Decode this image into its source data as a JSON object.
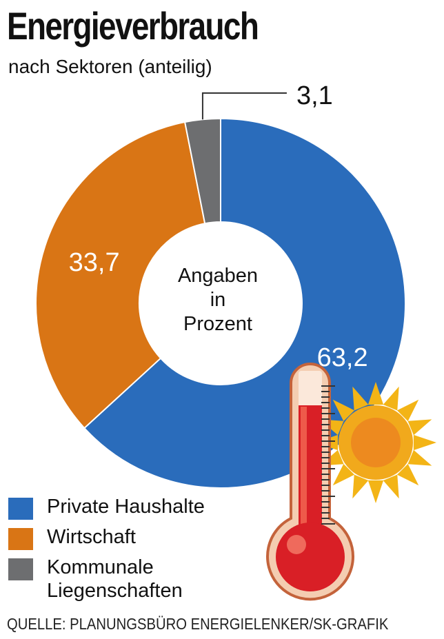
{
  "chart_data": {
    "type": "pie",
    "style": "donut",
    "title": "Energieverbrauch",
    "subtitle": "nach Sektoren (anteilig)",
    "center_label": [
      "Angaben",
      "in",
      "Prozent"
    ],
    "series": [
      {
        "name": "Private Haushalte",
        "value": 63.2,
        "label": "63,2",
        "color": "#2a6cbb"
      },
      {
        "name": "Wirtschaft",
        "value": 33.7,
        "label": "33,7",
        "color": "#d97515"
      },
      {
        "name": "Kommunale Liegenschaften",
        "value": 3.1,
        "label": "3,1",
        "color": "#6d6e70"
      }
    ],
    "legend": {
      "placement": "bottom-left",
      "items": [
        {
          "label": "Private Haushalte",
          "color": "#2a6cbb"
        },
        {
          "label": "Wirtschaft",
          "color": "#d97515"
        },
        {
          "label": "Kommunale Liegenschaften",
          "color": "#6d6e70"
        }
      ]
    },
    "source": "QUELLE: PLANUNGSBÜRO ENERGIELENKER/SK-GRAFIK"
  },
  "decoration": {
    "icons": [
      "thermometer-icon",
      "sun-icon"
    ]
  }
}
